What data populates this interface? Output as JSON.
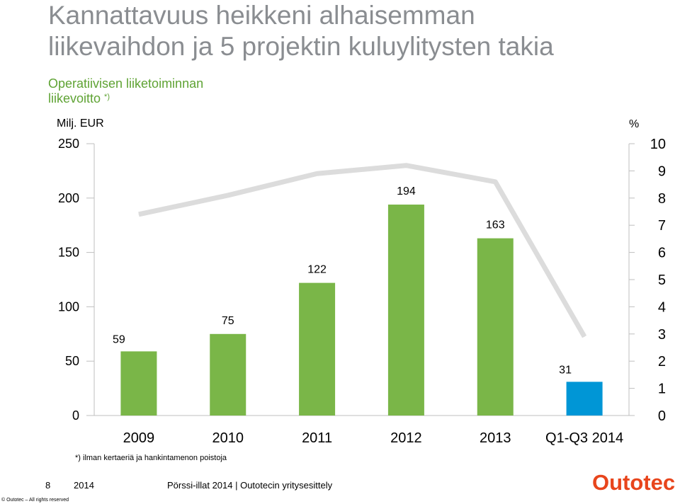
{
  "slide": {
    "title_line1": "Kannattavuus heikkeni alhaisemman",
    "title_line2": "liikevaihdon ja 5 projektin kuluylitysten takia",
    "subtitle_line1": "Operatiivisen liiketoiminnan",
    "subtitle_line2": "liikevoitto",
    "subtitle_note": "*)",
    "footnote": "*) ilman kertaeriä ja hankintamenon poistoja"
  },
  "footer": {
    "page_number": "8",
    "year": "2014",
    "text": "Pörssi-illat 2014  |  Outotecin yritysesittely",
    "copyright": "© Outotec – All rights reserved",
    "logo": "Outotec"
  },
  "chart_data": {
    "type": "bar",
    "categories": [
      "2009",
      "2010",
      "2011",
      "2012",
      "2013",
      "Q1-Q3 2014"
    ],
    "series": [
      {
        "type": "bar",
        "axis": "left",
        "values": [
          59,
          75,
          122,
          194,
          163,
          31
        ],
        "colors": [
          "#7ab648",
          "#7ab648",
          "#7ab648",
          "#7ab648",
          "#7ab648",
          "#0096d6"
        ]
      },
      {
        "type": "line",
        "axis": "right",
        "values": [
          7.4,
          8.1,
          8.9,
          9.2,
          8.6,
          2.9
        ],
        "color": "#dcdcdc"
      }
    ],
    "ylabel_left": "Milj. EUR",
    "ylabel_right": "%",
    "ylim_left": [
      0,
      250
    ],
    "yticks_left": [
      0,
      50,
      100,
      150,
      200,
      250
    ],
    "ylim_right": [
      0,
      10
    ],
    "yticks_right": [
      0,
      1,
      2,
      3,
      4,
      5,
      6,
      7,
      8,
      9,
      10
    ],
    "grid": false,
    "data_labels": true
  }
}
